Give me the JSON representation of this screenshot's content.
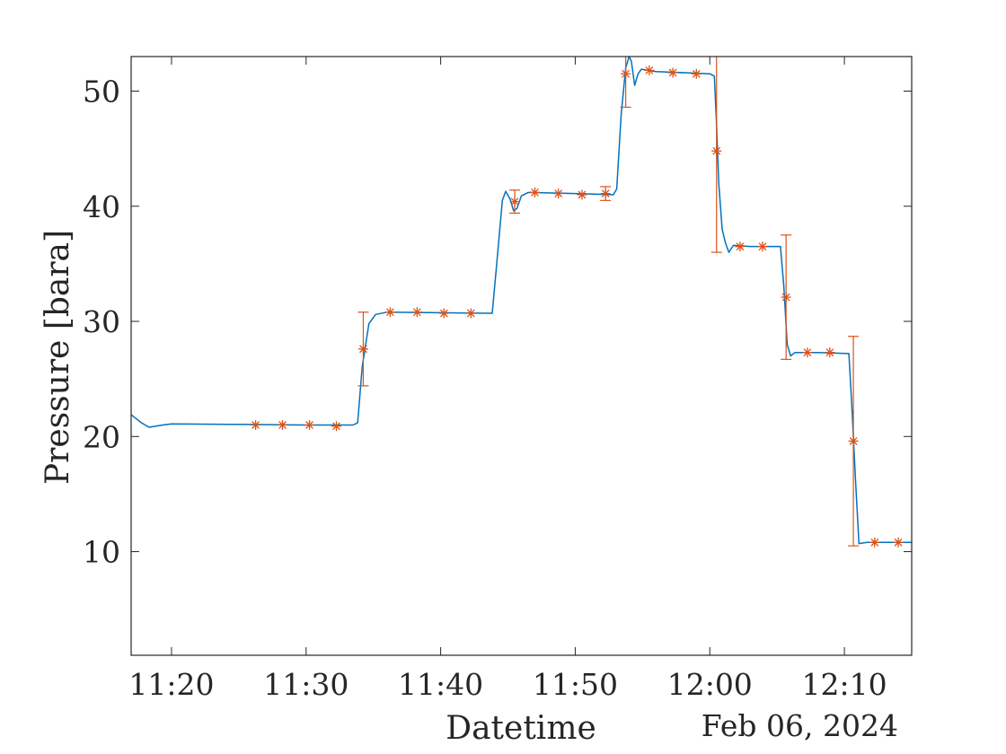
{
  "chart_data": {
    "type": "line",
    "xlabel": "Datetime",
    "ylabel": "Pressure [bara]",
    "date_label": "Feb 06, 2024",
    "x_unit": "time of day (Feb 06, 2024)",
    "xlim": [
      "11:17",
      "12:15"
    ],
    "ylim": [
      1,
      53
    ],
    "xticks": [
      "11:20",
      "11:30",
      "11:40",
      "11:50",
      "12:00",
      "12:10"
    ],
    "yticks": [
      10,
      20,
      30,
      40,
      50
    ],
    "grid": false,
    "legend": "none",
    "colors": {
      "line": "#0072BD",
      "markers": "#D95319",
      "axis": "#262626"
    },
    "series": [
      {
        "style": "line",
        "points": [
          [
            "11:17:00",
            21.9
          ],
          [
            "11:17:45",
            21.2
          ],
          [
            "11:18:20",
            20.8
          ],
          [
            "11:19:20",
            21.0
          ],
          [
            "11:20:00",
            21.1
          ],
          [
            "11:25:00",
            21.05
          ],
          [
            "11:30:00",
            21.0
          ],
          [
            "11:33:30",
            21.0
          ],
          [
            "11:33:50",
            21.2
          ],
          [
            "11:34:10",
            26.0
          ],
          [
            "11:34:40",
            29.8
          ],
          [
            "11:35:10",
            30.6
          ],
          [
            "11:36:00",
            30.8
          ],
          [
            "11:40:00",
            30.75
          ],
          [
            "11:43:50",
            30.7
          ],
          [
            "11:44:10",
            35.0
          ],
          [
            "11:44:35",
            40.5
          ],
          [
            "11:44:50",
            41.3
          ],
          [
            "11:45:10",
            40.6
          ],
          [
            "11:45:25",
            39.6
          ],
          [
            "11:45:40",
            39.8
          ],
          [
            "11:46:00",
            40.9
          ],
          [
            "11:46:30",
            41.2
          ],
          [
            "11:50:00",
            41.1
          ],
          [
            "11:52:50",
            41.0
          ],
          [
            "11:53:05",
            41.5
          ],
          [
            "11:53:25",
            48.0
          ],
          [
            "11:53:45",
            52.0
          ],
          [
            "11:54:00",
            53.0
          ],
          [
            "11:54:10",
            52.6
          ],
          [
            "11:54:25",
            50.5
          ],
          [
            "11:54:40",
            51.5
          ],
          [
            "11:54:55",
            51.9
          ],
          [
            "11:56:00",
            51.7
          ],
          [
            "12:00:00",
            51.5
          ],
          [
            "12:00:20",
            51.3
          ],
          [
            "12:00:30",
            47.0
          ],
          [
            "12:00:40",
            42.0
          ],
          [
            "12:00:55",
            38.0
          ],
          [
            "12:01:10",
            36.8
          ],
          [
            "12:01:25",
            36.0
          ],
          [
            "12:01:45",
            36.6
          ],
          [
            "12:03:00",
            36.5
          ],
          [
            "12:05:15",
            36.5
          ],
          [
            "12:05:30",
            33.0
          ],
          [
            "12:05:45",
            28.0
          ],
          [
            "12:06:00",
            27.0
          ],
          [
            "12:06:20",
            27.3
          ],
          [
            "12:08:00",
            27.3
          ],
          [
            "12:10:20",
            27.2
          ],
          [
            "12:10:35",
            22.0
          ],
          [
            "12:10:50",
            16.0
          ],
          [
            "12:11:05",
            10.7
          ],
          [
            "12:11:40",
            10.8
          ],
          [
            "12:15:00",
            10.8
          ]
        ]
      },
      {
        "style": "markers-with-error-bars",
        "points": [
          {
            "x": "11:26:15",
            "y": 21.0,
            "err": 0
          },
          {
            "x": "11:28:15",
            "y": 21.0,
            "err": 0
          },
          {
            "x": "11:30:15",
            "y": 21.0,
            "err": 0
          },
          {
            "x": "11:32:15",
            "y": 20.9,
            "err": 0
          },
          {
            "x": "11:34:15",
            "y": 27.6,
            "err": 3.2
          },
          {
            "x": "11:36:15",
            "y": 30.8,
            "err": 0
          },
          {
            "x": "11:38:15",
            "y": 30.8,
            "err": 0
          },
          {
            "x": "11:40:15",
            "y": 30.7,
            "err": 0
          },
          {
            "x": "11:42:15",
            "y": 30.7,
            "err": 0
          },
          {
            "x": "11:45:30",
            "y": 40.4,
            "err": 1.0
          },
          {
            "x": "11:47:00",
            "y": 41.2,
            "err": 0
          },
          {
            "x": "11:48:45",
            "y": 41.1,
            "err": 0
          },
          {
            "x": "11:50:30",
            "y": 41.0,
            "err": 0
          },
          {
            "x": "11:52:15",
            "y": 41.1,
            "err": 0.6
          },
          {
            "x": "11:53:45",
            "y": 51.5,
            "err": 2.9
          },
          {
            "x": "11:55:30",
            "y": 51.8,
            "err": 0
          },
          {
            "x": "11:57:15",
            "y": 51.6,
            "err": 0
          },
          {
            "x": "11:59:00",
            "y": 51.5,
            "err": 0
          },
          {
            "x": "12:00:30",
            "y": 44.8,
            "err": 8.8
          },
          {
            "x": "12:02:15",
            "y": 36.5,
            "err": 0
          },
          {
            "x": "12:03:55",
            "y": 36.5,
            "err": 0
          },
          {
            "x": "12:05:40",
            "y": 32.1,
            "err": 5.4
          },
          {
            "x": "12:07:15",
            "y": 27.3,
            "err": 0
          },
          {
            "x": "12:08:55",
            "y": 27.3,
            "err": 0
          },
          {
            "x": "12:10:40",
            "y": 19.6,
            "err": 9.1
          },
          {
            "x": "12:12:15",
            "y": 10.8,
            "err": 0
          },
          {
            "x": "12:14:00",
            "y": 10.8,
            "err": 0
          }
        ]
      }
    ]
  }
}
